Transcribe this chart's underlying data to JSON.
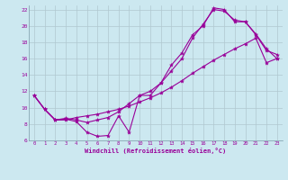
{
  "xlabel": "Windchill (Refroidissement éolien,°C)",
  "background_color": "#cce8f0",
  "grid_color": "#b0c8d0",
  "line_color": "#990099",
  "xlim": [
    -0.5,
    23.5
  ],
  "ylim": [
    6,
    22.5
  ],
  "xticks": [
    0,
    1,
    2,
    3,
    4,
    5,
    6,
    7,
    8,
    9,
    10,
    11,
    12,
    13,
    14,
    15,
    16,
    17,
    18,
    19,
    20,
    21,
    22,
    23
  ],
  "yticks": [
    6,
    8,
    10,
    12,
    14,
    16,
    18,
    20,
    22
  ],
  "line1_x": [
    0,
    1,
    2,
    3,
    4,
    5,
    6,
    7,
    8,
    9,
    10,
    11,
    12,
    13,
    14,
    15,
    16,
    17,
    18,
    19,
    20,
    21,
    22,
    23
  ],
  "line1_y": [
    11.5,
    9.8,
    8.5,
    8.6,
    8.3,
    7.0,
    6.5,
    6.6,
    9.0,
    7.0,
    11.5,
    11.5,
    13.0,
    15.2,
    16.7,
    18.9,
    20.0,
    22.2,
    22.0,
    20.5,
    20.5,
    19.0,
    17.2,
    16.0
  ],
  "line2_x": [
    0,
    1,
    2,
    3,
    4,
    5,
    6,
    7,
    8,
    9,
    10,
    11,
    12,
    13,
    14,
    15,
    16,
    17,
    18,
    19,
    20,
    21,
    22,
    23
  ],
  "line2_y": [
    11.5,
    9.8,
    8.5,
    8.7,
    8.5,
    8.2,
    8.5,
    8.8,
    9.5,
    10.5,
    11.5,
    12.0,
    13.0,
    14.5,
    16.0,
    18.5,
    20.2,
    22.0,
    21.8,
    20.7,
    20.5,
    18.9,
    17.0,
    16.5
  ],
  "line3_x": [
    0,
    1,
    2,
    3,
    4,
    5,
    6,
    7,
    8,
    9,
    10,
    11,
    12,
    13,
    14,
    15,
    16,
    17,
    18,
    19,
    20,
    21,
    22,
    23
  ],
  "line3_y": [
    11.5,
    9.8,
    8.5,
    8.5,
    8.8,
    9.0,
    9.2,
    9.5,
    9.8,
    10.2,
    10.7,
    11.2,
    11.8,
    12.5,
    13.3,
    14.2,
    15.0,
    15.8,
    16.5,
    17.2,
    17.8,
    18.5,
    15.5,
    16.0
  ]
}
